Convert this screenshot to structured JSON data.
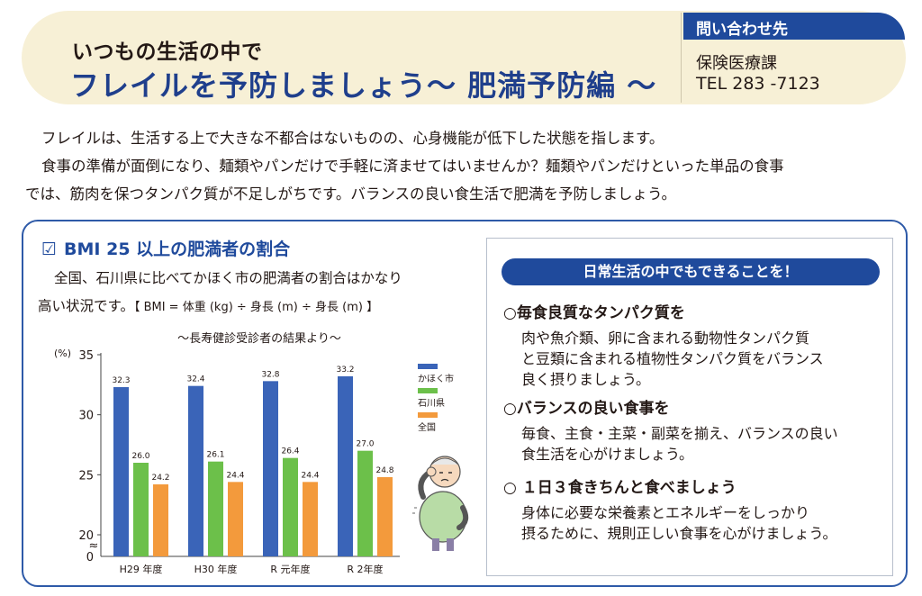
{
  "header": {
    "subtitle": "いつもの生活の中で",
    "title": "フレイルを予防しましょう～ 肥満予防編 ～"
  },
  "contact": {
    "label": "問い合わせ先",
    "department": "保険医療課",
    "tel": "TEL 283 -7123"
  },
  "intro": {
    "line1": "フレイルは、生活する上で大きな不都合はないものの、心身機能が低下した状態を指します。",
    "line2": "食事の準備が面倒になり、麺類やパンだけで手軽に済ませてはいませんか？麺類やパンだけといった単品の食事",
    "line3": "では、筋肉を保つタンパク質が不足しがちです。バランスの良い食生活で肥満を予防しましょう。"
  },
  "bmi": {
    "checkbox": "☑",
    "title": "BMI 25 以上の肥満者の割合",
    "desc1": "全国、石川県に比べてかほく市の肥満者の割合はかなり",
    "desc2": "高い状況です。",
    "formula": "【 BMI = 体重 (kg) ÷ 身長 (m) ÷ 身長 (m) 】"
  },
  "chart_data": {
    "type": "bar",
    "title": "～長寿健診受診者の結果より～",
    "ylabel": "(%)",
    "categories": [
      "H29 年度",
      "H30 年度",
      "R 元年度",
      "R 2年度"
    ],
    "series": [
      {
        "name": "かほく市",
        "values": [
          32.3,
          32.4,
          32.8,
          33.2
        ],
        "color": "#3a64b8"
      },
      {
        "name": "石川県",
        "values": [
          26.0,
          26.1,
          26.4,
          27.0
        ],
        "color": "#6cc04a"
      },
      {
        "name": "全国",
        "values": [
          24.2,
          24.4,
          24.4,
          24.8
        ],
        "color": "#f39a3c"
      }
    ],
    "ylim": [
      20,
      35
    ],
    "yticks": [
      "35",
      "30",
      "25",
      "20",
      "0"
    ],
    "axis_break": "≈",
    "grid": false,
    "legend": "right"
  },
  "tips": {
    "heading": "日常生活の中でもできることを！",
    "items": [
      {
        "title": "○毎食良質なタンパク質を",
        "lines": [
          "肉や魚介類、卵に含まれる動物性タンパク質",
          "と豆類に含まれる植物性タンパク質をバランス",
          "良く摂りましょう。"
        ]
      },
      {
        "title": "○バランスの良い食事を",
        "lines": [
          "毎食、主食・主菜・副菜を揃え、バランスの良い",
          "食生活を心がけましょう。"
        ]
      },
      {
        "title": "○ １日３食きちんと食べましょう",
        "lines": [
          "身体に必要な栄養素とエネルギーをしっかり",
          "摂るために、規則正しい食事を心がけましょう。"
        ]
      }
    ]
  }
}
